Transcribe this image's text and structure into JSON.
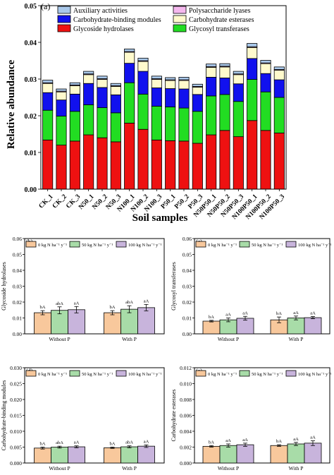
{
  "chart_data": [
    {
      "id": "a",
      "type": "bar",
      "stacked": true,
      "panel_label": "(a)",
      "xlabel": "Soil samples",
      "ylabel": "Relative abundance",
      "ylim": [
        0,
        0.05
      ],
      "yticks": [
        "0.00",
        "0.01",
        "0.02",
        "0.03",
        "0.04",
        "0.05"
      ],
      "legend_position": "top",
      "categories": [
        "CK_1",
        "CK_2",
        "CK_3",
        "N50_1",
        "N50_2",
        "N50_3",
        "N100_1",
        "N100_2",
        "N100_3",
        "P50_1",
        "P50_2",
        "P50_3",
        "N50P50_1",
        "N50P50_2",
        "N50P50_3",
        "N100P50_1",
        "N100P50_2",
        "N100P50_3"
      ],
      "series": [
        {
          "name": "Glycoside hydrolases",
          "color": "#ee1111",
          "values": [
            0.0134,
            0.012,
            0.0131,
            0.0148,
            0.014,
            0.0129,
            0.018,
            0.0163,
            0.0134,
            0.0132,
            0.0131,
            0.0125,
            0.0148,
            0.016,
            0.0143,
            0.0187,
            0.016,
            0.0153
          ]
        },
        {
          "name": "Glycosyl transferases",
          "color": "#22dd22",
          "values": [
            0.0081,
            0.0079,
            0.0081,
            0.0082,
            0.0082,
            0.0079,
            0.011,
            0.0096,
            0.0092,
            0.0092,
            0.009,
            0.0087,
            0.0106,
            0.0098,
            0.0096,
            0.0112,
            0.0105,
            0.0097
          ]
        },
        {
          "name": "Carbohydrate-binding modules",
          "color": "#1111ee",
          "values": [
            0.0048,
            0.0044,
            0.0047,
            0.0058,
            0.0055,
            0.0049,
            0.0053,
            0.0062,
            0.005,
            0.005,
            0.0052,
            0.0046,
            0.0051,
            0.0045,
            0.0048,
            0.0057,
            0.005,
            0.0048
          ]
        },
        {
          "name": "Carbohydrate esterases",
          "color": "#fffacd",
          "values": [
            0.0025,
            0.0022,
            0.0023,
            0.0024,
            0.0022,
            0.0023,
            0.003,
            0.0027,
            0.0023,
            0.0022,
            0.0023,
            0.002,
            0.0027,
            0.003,
            0.0025,
            0.003,
            0.0027,
            0.0026
          ]
        },
        {
          "name": "Polysaccharide lyases",
          "color": "#f5b8ee",
          "values": [
            0.0002,
            0.0002,
            0.0002,
            0.0002,
            0.0002,
            0.0002,
            0.0002,
            0.0002,
            0.0002,
            0.0002,
            0.0002,
            0.0002,
            0.0002,
            0.0002,
            0.0002,
            0.0002,
            0.0002,
            0.0002
          ]
        },
        {
          "name": "Auxiliary activities",
          "color": "#a9c8ea",
          "values": [
            0.0007,
            0.0006,
            0.0006,
            0.0007,
            0.0007,
            0.0006,
            0.0007,
            0.0007,
            0.0007,
            0.0006,
            0.0007,
            0.0006,
            0.0007,
            0.0007,
            0.0007,
            0.0009,
            0.0007,
            0.0007
          ]
        }
      ],
      "legend_order": [
        "Auxiliary activities",
        "Polysaccharide lyases",
        "Carbohydrate-binding modules",
        "Carbohydrate esterases",
        "Glycoside hydrolases",
        "Glycosyl transferases"
      ]
    },
    {
      "id": "b",
      "type": "bar",
      "panel_label": "(b)",
      "ylabel": "Glycoside hydrolases",
      "ylim": [
        0,
        0.06
      ],
      "yticks": [
        "0.00",
        "0.01",
        "0.02",
        "0.03",
        "0.04",
        "0.05",
        "0.06"
      ],
      "categories": [
        "Without P",
        "With P"
      ],
      "series": [
        {
          "name": "0 kg N ha⁻¹ y⁻¹",
          "color": "#f8c89c",
          "values": [
            0.0133,
            0.0133
          ],
          "errors": [
            0.0013,
            0.0013
          ],
          "labels": [
            "bA",
            "bA"
          ]
        },
        {
          "name": "50 kg N ha⁻¹ y⁻¹",
          "color": "#a8dca8",
          "values": [
            0.0148,
            0.0155
          ],
          "errors": [
            0.0022,
            0.0022
          ],
          "labels": [
            "abA",
            "abA"
          ]
        },
        {
          "name": "100 kg N ha⁻¹ y⁻¹",
          "color": "#c8b4dc",
          "values": [
            0.0152,
            0.0165
          ],
          "errors": [
            0.002,
            0.002
          ],
          "labels": [
            "aA",
            "aA"
          ]
        }
      ]
    },
    {
      "id": "c",
      "type": "bar",
      "panel_label": "(c)",
      "ylabel": "Glycosyl transferases",
      "ylim": [
        0,
        0.06
      ],
      "yticks": [
        "0.00",
        "0.01",
        "0.02",
        "0.03",
        "0.04",
        "0.05",
        "0.06"
      ],
      "categories": [
        "Without P",
        "With P"
      ],
      "series": [
        {
          "name": "0 kg N ha⁻¹ y⁻¹",
          "color": "#f8c89c",
          "values": [
            0.008,
            0.0088
          ],
          "errors": [
            0.0005,
            0.0018
          ],
          "labels": [
            "bA",
            "bA"
          ]
        },
        {
          "name": "50 kg N ha⁻¹ y⁻¹",
          "color": "#a8dca8",
          "values": [
            0.0088,
            0.01
          ],
          "errors": [
            0.0012,
            0.0012
          ],
          "labels": [
            "aA",
            "aA"
          ]
        },
        {
          "name": "100 kg N ha⁻¹ y⁻¹",
          "color": "#c8b4dc",
          "values": [
            0.0098,
            0.0102
          ],
          "errors": [
            0.0012,
            0.0007
          ],
          "labels": [
            "aA",
            "aA"
          ]
        }
      ]
    },
    {
      "id": "d",
      "type": "bar",
      "panel_label": "(d)",
      "ylabel": "Carbohydrate-binding modules",
      "ylim": [
        0,
        0.03
      ],
      "yticks": [
        "0.000",
        "0.005",
        "0.010",
        "0.015",
        "0.020",
        "0.025",
        "0.030"
      ],
      "categories": [
        "Without P",
        "With P"
      ],
      "series": [
        {
          "name": "0 kg N ha⁻¹ y⁻¹",
          "color": "#f8c89c",
          "values": [
            0.0047,
            0.0048
          ],
          "errors": [
            0.0003,
            0.0002
          ],
          "labels": [
            "bA",
            "bA"
          ]
        },
        {
          "name": "50 kg N ha⁻¹ y⁻¹",
          "color": "#a8dca8",
          "values": [
            0.005,
            0.0051
          ],
          "errors": [
            0.0003,
            0.0003
          ],
          "labels": [
            "abA",
            "abA"
          ]
        },
        {
          "name": "100 kg N ha⁻¹ y⁻¹",
          "color": "#c8b4dc",
          "values": [
            0.0051,
            0.0053
          ],
          "errors": [
            0.0003,
            0.0004
          ],
          "labels": [
            "aA",
            "aA"
          ]
        }
      ]
    },
    {
      "id": "e",
      "type": "bar",
      "panel_label": "(e)",
      "ylabel": "Carbohydrate esterases",
      "ylim": [
        0,
        0.012
      ],
      "yticks": [
        "0.000",
        "0.002",
        "0.004",
        "0.006",
        "0.008",
        "0.010",
        "0.012"
      ],
      "categories": [
        "Without P",
        "With P"
      ],
      "series": [
        {
          "name": "0 kg N ha⁻¹ y⁻¹",
          "color": "#f8c89c",
          "values": [
            0.0021,
            0.0022
          ],
          "errors": [
            0.0001,
            0.0001
          ],
          "labels": [
            "bA",
            "bA"
          ]
        },
        {
          "name": "50 kg N ha⁻¹ y⁻¹",
          "color": "#a8dca8",
          "values": [
            0.0022,
            0.0024
          ],
          "errors": [
            0.0002,
            0.0002
          ],
          "labels": [
            "aA",
            "aA"
          ]
        },
        {
          "name": "100 kg N ha⁻¹ y⁻¹",
          "color": "#c8b4dc",
          "values": [
            0.0023,
            0.0025
          ],
          "errors": [
            0.0002,
            0.0003
          ],
          "labels": [
            "aA",
            "aA"
          ]
        }
      ]
    }
  ]
}
